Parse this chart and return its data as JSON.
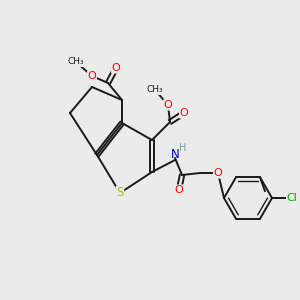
{
  "background_color": "#ebebeb",
  "atom_colors": {
    "S": "#b8b800",
    "O": "#ff0000",
    "N": "#0000cc",
    "Cl": "#00aa00",
    "H": "#888888",
    "C": "#1a1a1a"
  },
  "bond_color": "#1a1a1a",
  "bond_lw": 1.4
}
